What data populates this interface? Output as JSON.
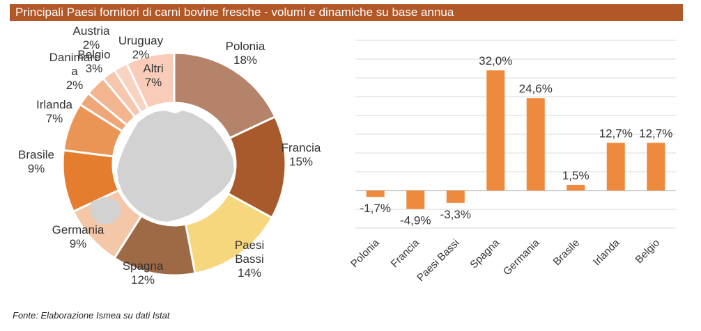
{
  "header": {
    "title": "Principali Paesi fornitori di carni bovine fresche - volumi e dinamiche su base annua"
  },
  "footer": {
    "source": "Fonte: Elaborazione Ismea su dati Istat"
  },
  "colors": {
    "title_bg": "#b25828",
    "bar": "#ee8a3e",
    "grid": "#d9d9d9",
    "axis": "#bfbfbf",
    "map": "#d2d2d2"
  },
  "chart_data": [
    {
      "type": "pie",
      "donut": true,
      "slices": [
        {
          "label": "Polonia",
          "value": 18,
          "pct_label": "18%",
          "color": "#b5836a"
        },
        {
          "label": "Francia",
          "value": 15,
          "pct_label": "15%",
          "color": "#a85a2c"
        },
        {
          "label": "Paesi Bassi",
          "value": 14,
          "pct_label": "14%",
          "color": "#f7d77e"
        },
        {
          "label": "Spagna",
          "value": 12,
          "pct_label": "12%",
          "color": "#9e6a46"
        },
        {
          "label": "Germania",
          "value": 9,
          "pct_label": "9%",
          "color": "#f3c7a7"
        },
        {
          "label": "Brasile",
          "value": 9,
          "pct_label": "9%",
          "color": "#e47e2e"
        },
        {
          "label": "Irlanda",
          "value": 7,
          "pct_label": "7%",
          "color": "#ea9456"
        },
        {
          "label": "Danimarca",
          "value": 2,
          "pct_label": "2%",
          "color": "#efa678"
        },
        {
          "label": "Belgio",
          "value": 3,
          "pct_label": "3%",
          "color": "#f2b590"
        },
        {
          "label": "Austria",
          "value": 2,
          "pct_label": "2%",
          "color": "#f6c7ad"
        },
        {
          "label": "Uruguay",
          "value": 2,
          "pct_label": "2%",
          "color": "#f9d3c1"
        },
        {
          "label": "Altri",
          "value": 7,
          "pct_label": "7%",
          "color": "#f8ccb9"
        }
      ]
    },
    {
      "type": "bar",
      "categories": [
        "Polonia",
        "Francia",
        "Paesi Bassi",
        "Spagna",
        "Germania",
        "Brasile",
        "Irlanda",
        "Belgio"
      ],
      "values": [
        -1.7,
        -4.9,
        -3.3,
        32.0,
        24.6,
        1.5,
        12.7,
        12.7
      ],
      "value_labels": [
        "-1,7%",
        "-4,9%",
        "-3,3%",
        "32,0%",
        "24,6%",
        "1,5%",
        "12,7%",
        "12,7%"
      ],
      "ylim": [
        -10,
        40
      ],
      "grid": true
    }
  ]
}
